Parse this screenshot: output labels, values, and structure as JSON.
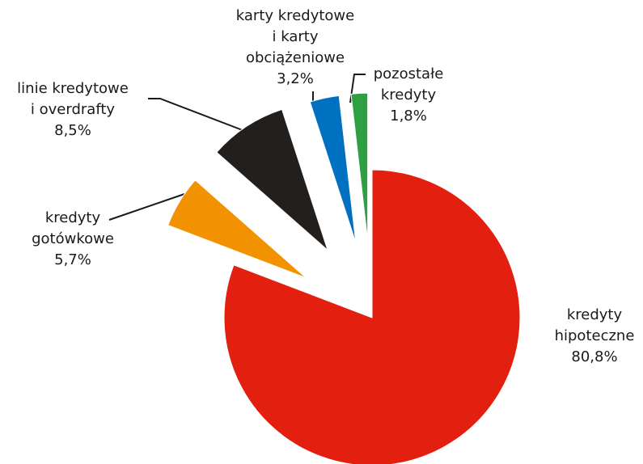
{
  "chart_data": {
    "type": "pie",
    "categories": [
      "kredyty\nhipoteczne",
      "kredyty\ngotówkowe",
      "linie kredytowe\ni overdrafty",
      "karty kredytowe\ni karty\nobciążeniowe",
      "pozostałe\nkredyty"
    ],
    "values": [
      80.8,
      5.7,
      8.5,
      3.2,
      1.8
    ],
    "value_labels": [
      "80,8%",
      "5,7%",
      "8,5%",
      "3,2%",
      "1,8%"
    ],
    "colors": [
      "#e3200f",
      "#f39200",
      "#231f1c",
      "#0070c0",
      "#2ea043"
    ]
  }
}
